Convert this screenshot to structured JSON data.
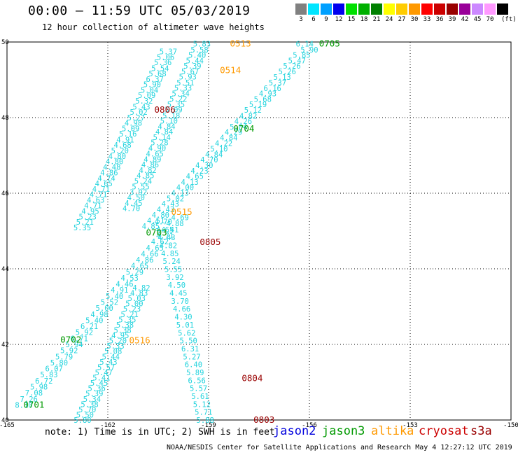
{
  "header": {
    "title": "00:00 – 11:59 UTC 05/03/2019",
    "subtitle": "12 hour collection of altimeter wave heights"
  },
  "colorbar": {
    "unit_label": "(ft)",
    "stops": [
      {
        "label": "3",
        "color": "#808080"
      },
      {
        "label": "6",
        "color": "#00e5ff"
      },
      {
        "label": "9",
        "color": "#00a0ff"
      },
      {
        "label": "12",
        "color": "#0000ee"
      },
      {
        "label": "15",
        "color": "#00e000"
      },
      {
        "label": "18",
        "color": "#00b000"
      },
      {
        "label": "21",
        "color": "#008000"
      },
      {
        "label": "24",
        "color": "#ffff00"
      },
      {
        "label": "27",
        "color": "#ffcc00"
      },
      {
        "label": "30",
        "color": "#ff9900"
      },
      {
        "label": "33",
        "color": "#ff0000"
      },
      {
        "label": "36",
        "color": "#cc0000"
      },
      {
        "label": "39",
        "color": "#990000"
      },
      {
        "label": "42",
        "color": "#990099"
      },
      {
        "label": "45",
        "color": "#cc88ff"
      },
      {
        "label": "70",
        "color": "#ff99ff"
      },
      {
        "label": "",
        "color": "#000000"
      }
    ]
  },
  "footer": {
    "note": "note: 1) Time is in UTC; 2) SWH is in feet",
    "satellites": [
      {
        "name": "jason2",
        "color": "#0000dd"
      },
      {
        "name": "jason3",
        "color": "#009900"
      },
      {
        "name": "altika",
        "color": "#ff9900"
      },
      {
        "name": "cryosat",
        "color": "#cc0000"
      },
      {
        "name": "s3a",
        "color": "#990000"
      }
    ],
    "credit": "NOAA/NESDIS Center for Satellite Applications and Research    May  4 12:27:12 UTC 2019"
  },
  "chart_data": {
    "type": "scatter",
    "title": "00:00 – 11:59 UTC 05/03/2019",
    "subtitle": "12 hour collection of altimeter wave heights",
    "xlabel": "",
    "ylabel": "",
    "xlim": [
      -165,
      -150
    ],
    "ylim": [
      40,
      50
    ],
    "x_ticks": [
      "-165",
      "-162",
      "-159",
      "-156",
      "-153",
      "-150"
    ],
    "y_ticks": [
      "40",
      "42",
      "44",
      "46",
      "48",
      "50"
    ],
    "grid": true,
    "point_color": "#22d3dd",
    "series": [
      {
        "track": "0705",
        "x": [
          -156.14,
          -156.0,
          -156.23,
          -156.37,
          -156.52,
          -156.66,
          -156.81,
          -156.95,
          -157.1,
          -157.24,
          -157.39,
          -157.53,
          -157.68,
          -157.82,
          -157.97,
          -158.11,
          -158.26,
          -158.4,
          -158.55,
          -158.69,
          -158.84,
          -158.98,
          -159.13,
          -159.27,
          -159.41,
          -159.56,
          -159.7,
          -159.85,
          -159.99,
          -160.14,
          -160.28,
          -160.43,
          -160.57,
          -160.72
        ],
        "y": [
          49.95,
          49.8,
          49.66,
          49.51,
          49.37,
          49.22,
          49.07,
          48.93,
          48.78,
          48.64,
          48.49,
          48.35,
          48.2,
          48.05,
          47.91,
          47.76,
          47.62,
          47.47,
          47.32,
          47.18,
          47.03,
          46.89,
          46.74,
          46.59,
          46.45,
          46.3,
          46.16,
          46.01,
          45.86,
          45.72,
          45.57,
          45.43,
          45.28,
          45.13
        ],
        "values": [
          "6.14",
          "5.90",
          "5.85",
          "5.47",
          "5.26",
          "5.26",
          "5.13",
          "5.37",
          "6.16",
          "4.93",
          "5.68",
          "5.19",
          "5.12",
          "4.82",
          "4.26",
          "5.04",
          "4.29",
          "4.84",
          "4.22",
          "5.10",
          "4.84",
          "4.70",
          "4.30",
          "4.23",
          "4.65",
          "4.13",
          "4.00",
          "4.13",
          "5.02",
          "4.43",
          "4.43",
          "4.80",
          "4.51",
          "4.85"
        ]
      },
      {
        "track": "0701",
        "x": [
          -164.5,
          -164.35,
          -164.2,
          -164.05,
          -163.9,
          -163.75,
          -163.6,
          -163.45,
          -163.3,
          -163.15,
          -163.0,
          -162.85,
          -162.7,
          -162.55,
          -162.4,
          -162.25,
          -162.1,
          -161.95,
          -161.8,
          -161.65,
          -161.5,
          -161.35,
          -161.2,
          -161.05,
          -160.9,
          -160.75,
          -160.6,
          -160.45,
          -160.3,
          -160.15,
          -160.0,
          -159.85
        ],
        "y": [
          40.4,
          40.56,
          40.72,
          40.88,
          41.04,
          41.2,
          41.36,
          41.52,
          41.68,
          41.84,
          42.0,
          42.16,
          42.32,
          42.48,
          42.64,
          42.8,
          42.96,
          43.12,
          43.28,
          43.44,
          43.6,
          43.76,
          43.92,
          44.08,
          44.24,
          44.4,
          44.56,
          44.72,
          44.88,
          45.04,
          45.2,
          45.36
        ],
        "values": [
          "8.10",
          "7.26",
          "7.08",
          "5.98",
          "6.72",
          "5.83",
          "6.07",
          "5.80",
          "5.79",
          "5.92",
          "5.94",
          "6.71",
          "5.92",
          "6.21",
          "5.40",
          "4.98",
          "5.00",
          "5.52",
          "5.40",
          "4.91",
          "4.46",
          "4.53",
          "5.29",
          "4.65",
          "4.86",
          "4.66",
          "4.65",
          "4.62",
          "4.71",
          "4.41",
          "4.88",
          "4.69"
        ]
      },
      {
        "track": "0806",
        "x": [
          -160.2,
          -160.28,
          -160.36,
          -160.44,
          -160.52,
          -160.6,
          -160.68,
          -160.76,
          -160.84,
          -160.92,
          -161.0,
          -161.08,
          -161.16,
          -161.24,
          -161.32,
          -161.4,
          -161.48,
          -161.56,
          -161.64,
          -161.72,
          -161.8,
          -161.88,
          -161.96,
          -162.04,
          -162.12,
          -162.2,
          -162.28,
          -162.36,
          -162.44,
          -162.52,
          -162.6,
          -162.68,
          -162.76
        ],
        "y": [
          49.75,
          49.6,
          49.46,
          49.31,
          49.17,
          49.02,
          48.88,
          48.73,
          48.59,
          48.44,
          48.29,
          48.15,
          48.0,
          47.86,
          47.71,
          47.57,
          47.42,
          47.28,
          47.13,
          46.98,
          46.84,
          46.69,
          46.55,
          46.4,
          46.26,
          46.11,
          45.97,
          45.82,
          45.68,
          45.53,
          45.38,
          45.24,
          45.09
        ],
        "values": [
          "5.37",
          "5.06",
          "5.36",
          "5.54",
          "5.68",
          "6.37",
          "5.90",
          "5.04",
          "5.09",
          "5.32",
          "5.43",
          "5.02",
          "5.27",
          "4.98",
          "5.09",
          "5.16",
          "4.91",
          "4.68",
          "5.20",
          "4.80",
          "4.80",
          "4.48",
          "4.86",
          "4.74",
          "4.65",
          "4.71",
          "4.71",
          "4.63",
          "4.71",
          "4.95",
          "5.23",
          "5.21",
          "5.35"
        ]
      },
      {
        "track": "0805",
        "x": [
          -159.2,
          -159.27,
          -159.34,
          -159.41,
          -159.48,
          -159.55,
          -159.62,
          -159.69,
          -159.76,
          -159.83,
          -159.9,
          -159.97,
          -160.04,
          -160.11,
          -160.18,
          -160.25,
          -160.32,
          -160.39,
          -160.46,
          -160.53,
          -160.6,
          -160.67,
          -160.74,
          -160.81,
          -160.88,
          -160.95,
          -161.02,
          -161.09,
          -161.16,
          -161.23,
          -161.3
        ],
        "y": [
          49.95,
          49.8,
          49.66,
          49.51,
          49.37,
          49.22,
          49.08,
          48.93,
          48.79,
          48.64,
          48.5,
          48.35,
          48.21,
          48.06,
          47.92,
          47.77,
          47.63,
          47.48,
          47.34,
          47.19,
          47.05,
          46.9,
          46.76,
          46.61,
          46.47,
          46.32,
          46.18,
          46.03,
          45.89,
          45.74,
          45.6
        ],
        "values": [
          "5.83",
          "5.58",
          "5.40",
          "5.44",
          "5.39",
          "5.67",
          "5.93",
          "5.51",
          "5.33",
          "5.34",
          "5.22",
          "5.35",
          "5.09",
          "5.18",
          "5.10",
          "4.84",
          "4.84",
          "5.14",
          "5.28",
          "4.90",
          "4.65",
          "4.89",
          "4.86",
          "4.82",
          "4.85",
          "5.24",
          "5.55",
          "3.92",
          "4.50",
          "4.45",
          "4.70"
        ]
      },
      {
        "track": "0702",
        "x": [
          -162.75,
          -162.68,
          -162.61,
          -162.54,
          -162.47,
          -162.4,
          -162.33,
          -162.26,
          -162.19,
          -162.12,
          -162.05,
          -161.98,
          -161.91,
          -161.84,
          -161.77,
          -161.7,
          -161.63,
          -161.56,
          -161.49,
          -161.42,
          -161.35,
          -161.28,
          -161.21,
          -161.14,
          -161.07,
          -161.0
        ],
        "y": [
          40.0,
          40.14,
          40.28,
          40.42,
          40.56,
          40.7,
          40.84,
          40.98,
          41.12,
          41.26,
          41.4,
          41.54,
          41.68,
          41.82,
          41.96,
          42.1,
          42.24,
          42.38,
          42.52,
          42.66,
          42.8,
          42.94,
          43.08,
          43.22,
          43.36,
          43.5
        ],
        "values": [
          "5.80",
          "5.50",
          "5.70",
          "5.38",
          "5.34",
          "5.39",
          "5.36",
          "5.45",
          "5.41",
          "5.47",
          "5.57",
          "5.43",
          "5.44",
          "5.08",
          "5.33",
          "5.20",
          "4.95",
          "5.38",
          "5.38",
          "5.35",
          "5.21",
          "5.23",
          "5.00",
          "5.03",
          "4.83",
          "4.82"
        ]
      },
      {
        "track": "0804",
        "x": [
          -159.1,
          -159.15,
          -159.2,
          -159.25,
          -159.3,
          -159.35,
          -159.4,
          -159.45,
          -159.5,
          -159.55,
          -159.6,
          -159.65,
          -159.7,
          -159.75,
          -159.8,
          -159.85,
          -159.9,
          -159.95,
          -160.0,
          -160.05,
          -160.1,
          -160.15,
          -160.2,
          -160.25,
          -160.3,
          -160.35
        ],
        "y": [
          40.0,
          40.21,
          40.42,
          40.63,
          40.84,
          41.05,
          41.26,
          41.47,
          41.68,
          41.89,
          42.1,
          42.31,
          42.52,
          42.73,
          42.94,
          43.15,
          43.36,
          43.57,
          43.78,
          43.99,
          44.2,
          44.41,
          44.62,
          44.83,
          45.04,
          45.25
        ],
        "values": [
          "5.88",
          "5.71",
          "5.12",
          "5.61",
          "5.57",
          "6.56",
          "5.89",
          "6.40",
          "5.27",
          "6.31",
          "5.50",
          "5.62",
          "5.01",
          "4.30",
          "4.66",
          "3.70",
          "4.45",
          "4.50",
          "3.92",
          "5.55",
          "5.24",
          "4.85",
          "4.82",
          "4.43",
          "4.65",
          "4.70"
        ]
      }
    ],
    "pass_labels": [
      {
        "text": "0513",
        "x": -158.05,
        "y": 49.95,
        "color": "#ff9900"
      },
      {
        "text": "0514",
        "x": -158.35,
        "y": 49.25,
        "color": "#ff9900"
      },
      {
        "text": "0806",
        "x": -160.3,
        "y": 48.2,
        "color": "#990000"
      },
      {
        "text": "0704",
        "x": -157.95,
        "y": 47.7,
        "color": "#009900"
      },
      {
        "text": "0705",
        "x": -155.4,
        "y": 49.95,
        "color": "#009900"
      },
      {
        "text": "0515",
        "x": -159.8,
        "y": 45.5,
        "color": "#ff9900"
      },
      {
        "text": "0703",
        "x": -160.55,
        "y": 44.95,
        "color": "#009900"
      },
      {
        "text": "0805",
        "x": -158.95,
        "y": 44.7,
        "color": "#990000"
      },
      {
        "text": "0702",
        "x": -163.1,
        "y": 42.12,
        "color": "#009900"
      },
      {
        "text": "0516",
        "x": -161.05,
        "y": 42.1,
        "color": "#ff9900"
      },
      {
        "text": "0804",
        "x": -157.7,
        "y": 41.1,
        "color": "#990000"
      },
      {
        "text": "0701",
        "x": -164.2,
        "y": 40.4,
        "color": "#009900"
      },
      {
        "text": "0803",
        "x": -157.35,
        "y": 40.0,
        "color": "#990000"
      }
    ]
  }
}
